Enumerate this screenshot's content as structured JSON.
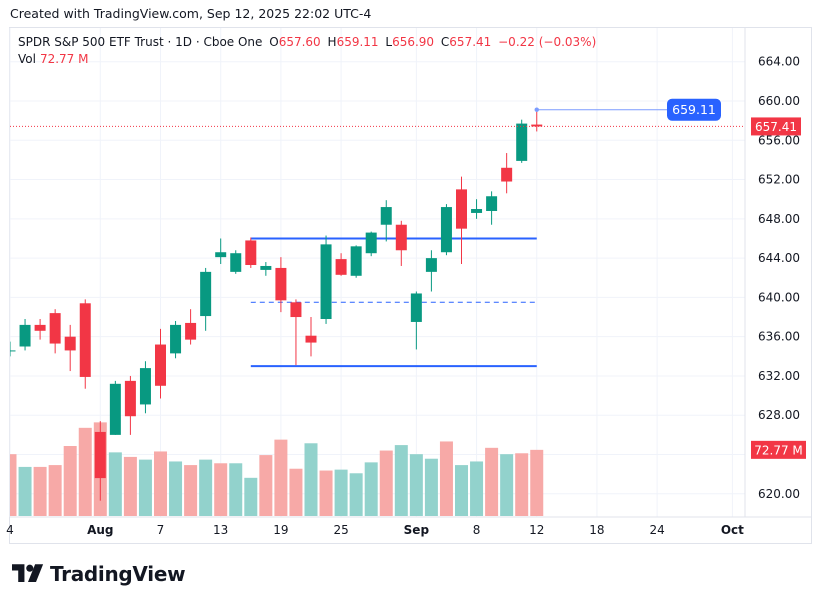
{
  "header": {
    "created_text": "Created with TradingView.com, Sep 12, 2025 22:02 UTC-4"
  },
  "legend": {
    "symbol": "SPDR S&P 500 ETF Trust · 1D · Cboe One",
    "o_label": "O",
    "o_value": "657.60",
    "h_label": "H",
    "h_value": "659.11",
    "l_label": "L",
    "l_value": "656.90",
    "c_label": "C",
    "c_value": "657.41",
    "change": "−0.22 (−0.03%)",
    "vol_label": "Vol",
    "vol_value": "72.77 M"
  },
  "colors": {
    "up": "#089981",
    "down": "#f23645",
    "up_vol": "#92d2cc",
    "down_vol": "#f7a9a7",
    "drawing": "#2962ff",
    "price_badge": "#f23645",
    "high_badge": "#2962ff"
  },
  "chart_data": {
    "type": "candlestick",
    "y_ticks": [
      "664.00",
      "660.00",
      "656.00",
      "652.00",
      "648.00",
      "644.00",
      "640.00",
      "636.00",
      "632.00",
      "628.00",
      "624.00",
      "620.00"
    ],
    "y_ticks_values": [
      664,
      660,
      656,
      652,
      648,
      644,
      640,
      636,
      632,
      628,
      624,
      620
    ],
    "ylim": [
      617,
      665
    ],
    "x_labels": [
      {
        "text": "4",
        "slot": 0
      },
      {
        "text": "Aug",
        "slot": 6,
        "bold": true
      },
      {
        "text": "7",
        "slot": 10
      },
      {
        "text": "13",
        "slot": 14
      },
      {
        "text": "19",
        "slot": 18
      },
      {
        "text": "25",
        "slot": 22
      },
      {
        "text": "Sep",
        "slot": 27,
        "bold": true
      },
      {
        "text": "8",
        "slot": 31
      },
      {
        "text": "12",
        "slot": 35
      },
      {
        "text": "18",
        "slot": 39
      },
      {
        "text": "24",
        "slot": 43
      },
      {
        "text": "Oct",
        "slot": 48,
        "bold": true
      }
    ],
    "candles": [
      {
        "slot": 0,
        "o": 634.5,
        "h": 635.5,
        "l": 634.0,
        "c": 634.6
      },
      {
        "slot": 1,
        "o": 635.0,
        "h": 637.8,
        "l": 634.6,
        "c": 637.2
      },
      {
        "slot": 2,
        "o": 637.2,
        "h": 637.8,
        "l": 635.7,
        "c": 636.6
      },
      {
        "slot": 3,
        "o": 638.4,
        "h": 638.8,
        "l": 634.3,
        "c": 635.3
      },
      {
        "slot": 4,
        "o": 636.0,
        "h": 637.2,
        "l": 632.5,
        "c": 634.6
      },
      {
        "slot": 5,
        "o": 639.4,
        "h": 639.8,
        "l": 630.7,
        "c": 631.9
      },
      {
        "slot": 6,
        "o": 626.3,
        "h": 627.4,
        "l": 619.3,
        "c": 621.6
      },
      {
        "slot": 7,
        "o": 626.0,
        "h": 631.5,
        "l": 626.0,
        "c": 631.2
      },
      {
        "slot": 8,
        "o": 631.5,
        "h": 632.0,
        "l": 626.0,
        "c": 627.9
      },
      {
        "slot": 9,
        "o": 629.1,
        "h": 633.5,
        "l": 628.2,
        "c": 632.8
      },
      {
        "slot": 10,
        "o": 635.2,
        "h": 636.8,
        "l": 629.7,
        "c": 631.0
      },
      {
        "slot": 11,
        "o": 634.3,
        "h": 637.6,
        "l": 633.8,
        "c": 637.2
      },
      {
        "slot": 12,
        "o": 637.4,
        "h": 638.8,
        "l": 635.2,
        "c": 635.7
      },
      {
        "slot": 13,
        "o": 638.1,
        "h": 643.0,
        "l": 636.6,
        "c": 642.6
      },
      {
        "slot": 14,
        "o": 644.1,
        "h": 646.0,
        "l": 643.4,
        "c": 644.6
      },
      {
        "slot": 15,
        "o": 642.6,
        "h": 644.8,
        "l": 642.4,
        "c": 644.5
      },
      {
        "slot": 16,
        "o": 645.8,
        "h": 646.1,
        "l": 643.0,
        "c": 643.3
      },
      {
        "slot": 17,
        "o": 642.8,
        "h": 643.6,
        "l": 642.2,
        "c": 643.2
      },
      {
        "slot": 18,
        "o": 643.0,
        "h": 644.1,
        "l": 638.5,
        "c": 639.7
      },
      {
        "slot": 19,
        "o": 639.5,
        "h": 639.8,
        "l": 633.1,
        "c": 638.0
      },
      {
        "slot": 20,
        "o": 636.1,
        "h": 638.0,
        "l": 634.0,
        "c": 635.4
      },
      {
        "slot": 21,
        "o": 637.8,
        "h": 646.3,
        "l": 637.3,
        "c": 645.4
      },
      {
        "slot": 22,
        "o": 643.9,
        "h": 644.5,
        "l": 642.2,
        "c": 642.3
      },
      {
        "slot": 23,
        "o": 642.2,
        "h": 645.3,
        "l": 642.0,
        "c": 645.2
      },
      {
        "slot": 24,
        "o": 644.5,
        "h": 646.7,
        "l": 644.2,
        "c": 646.6
      },
      {
        "slot": 25,
        "o": 647.4,
        "h": 649.9,
        "l": 645.7,
        "c": 649.2
      },
      {
        "slot": 26,
        "o": 647.4,
        "h": 647.8,
        "l": 643.2,
        "c": 644.8
      },
      {
        "slot": 27,
        "o": 637.5,
        "h": 640.6,
        "l": 634.7,
        "c": 640.4
      },
      {
        "slot": 28,
        "o": 642.6,
        "h": 644.8,
        "l": 640.6,
        "c": 644.0
      },
      {
        "slot": 29,
        "o": 644.6,
        "h": 649.5,
        "l": 644.3,
        "c": 649.2
      },
      {
        "slot": 30,
        "o": 651.0,
        "h": 652.3,
        "l": 643.4,
        "c": 647.0
      },
      {
        "slot": 31,
        "o": 648.6,
        "h": 650.0,
        "l": 648.0,
        "c": 649.0
      },
      {
        "slot": 32,
        "o": 648.8,
        "h": 650.8,
        "l": 647.4,
        "c": 650.3
      },
      {
        "slot": 33,
        "o": 653.2,
        "h": 654.7,
        "l": 650.6,
        "c": 651.8
      },
      {
        "slot": 34,
        "o": 653.9,
        "h": 658.1,
        "l": 653.7,
        "c": 657.7
      },
      {
        "slot": 35,
        "o": 657.6,
        "h": 659.11,
        "l": 656.9,
        "c": 657.41
      }
    ],
    "volume": [
      {
        "slot": 0,
        "v": 68,
        "dir": "down"
      },
      {
        "slot": 1,
        "v": 54,
        "dir": "up"
      },
      {
        "slot": 2,
        "v": 54,
        "dir": "down"
      },
      {
        "slot": 3,
        "v": 56,
        "dir": "down"
      },
      {
        "slot": 4,
        "v": 77,
        "dir": "down"
      },
      {
        "slot": 5,
        "v": 97,
        "dir": "down"
      },
      {
        "slot": 6,
        "v": 103,
        "dir": "down"
      },
      {
        "slot": 7,
        "v": 70,
        "dir": "up"
      },
      {
        "slot": 8,
        "v": 65,
        "dir": "down"
      },
      {
        "slot": 9,
        "v": 62,
        "dir": "up"
      },
      {
        "slot": 10,
        "v": 71,
        "dir": "down"
      },
      {
        "slot": 11,
        "v": 60,
        "dir": "up"
      },
      {
        "slot": 12,
        "v": 56,
        "dir": "down"
      },
      {
        "slot": 13,
        "v": 62,
        "dir": "up"
      },
      {
        "slot": 14,
        "v": 58,
        "dir": "down"
      },
      {
        "slot": 15,
        "v": 58,
        "dir": "up"
      },
      {
        "slot": 16,
        "v": 42,
        "dir": "up"
      },
      {
        "slot": 17,
        "v": 67,
        "dir": "down"
      },
      {
        "slot": 18,
        "v": 84,
        "dir": "down"
      },
      {
        "slot": 19,
        "v": 52,
        "dir": "down"
      },
      {
        "slot": 20,
        "v": 80,
        "dir": "up"
      },
      {
        "slot": 21,
        "v": 50,
        "dir": "down"
      },
      {
        "slot": 22,
        "v": 51,
        "dir": "up"
      },
      {
        "slot": 23,
        "v": 47,
        "dir": "up"
      },
      {
        "slot": 24,
        "v": 59,
        "dir": "up"
      },
      {
        "slot": 25,
        "v": 72,
        "dir": "down"
      },
      {
        "slot": 26,
        "v": 78,
        "dir": "up"
      },
      {
        "slot": 27,
        "v": 68,
        "dir": "up"
      },
      {
        "slot": 28,
        "v": 63,
        "dir": "up"
      },
      {
        "slot": 29,
        "v": 82,
        "dir": "down"
      },
      {
        "slot": 30,
        "v": 56,
        "dir": "up"
      },
      {
        "slot": 31,
        "v": 60,
        "dir": "up"
      },
      {
        "slot": 32,
        "v": 75,
        "dir": "down"
      },
      {
        "slot": 33,
        "v": 68,
        "dir": "up"
      },
      {
        "slot": 34,
        "v": 69,
        "dir": "down"
      },
      {
        "slot": 35,
        "v": 72.77,
        "dir": "down"
      }
    ],
    "volume_max": 110,
    "drawings": [
      {
        "kind": "hline",
        "y": 646.0,
        "slot_from": 16,
        "slot_to": 35,
        "style": "solid"
      },
      {
        "kind": "hline",
        "y": 639.5,
        "slot_from": 16,
        "slot_to": 35,
        "style": "dashed"
      },
      {
        "kind": "hline",
        "y": 633.0,
        "slot_from": 16,
        "slot_to": 35,
        "style": "solid"
      }
    ],
    "high_marker": {
      "y": 659.11,
      "slot_from": 35,
      "label": "659.11"
    },
    "last_price": {
      "y": 657.41,
      "label": "657.41"
    },
    "volume_badge": {
      "label": "72.77 M"
    }
  }
}
